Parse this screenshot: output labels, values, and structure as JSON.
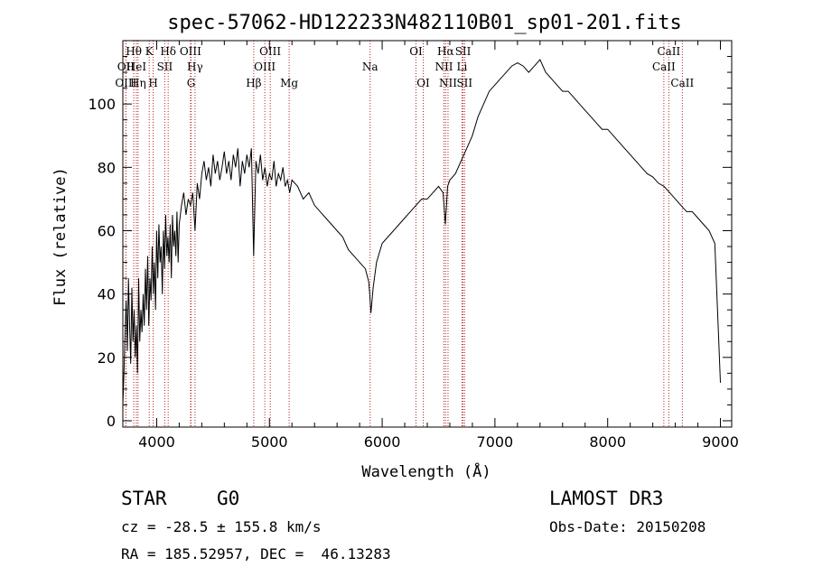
{
  "chart_data": {
    "type": "line",
    "title": "spec-57062-HD122233N482110B01_sp01-201.fits",
    "xlabel": "Wavelength (Å)",
    "ylabel": "Flux (relative)",
    "xlim": [
      3700,
      9100
    ],
    "ylim": [
      -2,
      120
    ],
    "xticks": [
      4000,
      5000,
      6000,
      7000,
      8000,
      9000
    ],
    "yticks": [
      0,
      20,
      40,
      60,
      80,
      100
    ],
    "series": [
      {
        "name": "flux",
        "x": [
          3700,
          3710,
          3720,
          3730,
          3740,
          3750,
          3760,
          3770,
          3780,
          3790,
          3800,
          3810,
          3820,
          3830,
          3840,
          3850,
          3860,
          3870,
          3880,
          3890,
          3900,
          3910,
          3920,
          3930,
          3940,
          3950,
          3960,
          3970,
          3980,
          3990,
          4000,
          4010,
          4020,
          4030,
          4040,
          4050,
          4060,
          4070,
          4080,
          4090,
          4100,
          4110,
          4120,
          4130,
          4140,
          4150,
          4160,
          4170,
          4180,
          4190,
          4200,
          4220,
          4240,
          4260,
          4280,
          4300,
          4320,
          4340,
          4360,
          4380,
          4400,
          4420,
          4440,
          4460,
          4480,
          4500,
          4520,
          4540,
          4560,
          4580,
          4600,
          4620,
          4640,
          4660,
          4680,
          4700,
          4720,
          4740,
          4760,
          4780,
          4800,
          4820,
          4840,
          4860,
          4880,
          4900,
          4920,
          4940,
          4960,
          4980,
          5000,
          5020,
          5040,
          5060,
          5080,
          5100,
          5120,
          5140,
          5160,
          5180,
          5200,
          5250,
          5300,
          5350,
          5400,
          5450,
          5500,
          5550,
          5600,
          5650,
          5700,
          5750,
          5800,
          5850,
          5880,
          5890,
          5900,
          5920,
          5950,
          6000,
          6050,
          6100,
          6150,
          6200,
          6250,
          6300,
          6350,
          6400,
          6450,
          6500,
          6540,
          6560,
          6580,
          6600,
          6650,
          6700,
          6750,
          6800,
          6850,
          6900,
          6950,
          7000,
          7050,
          7100,
          7150,
          7200,
          7250,
          7300,
          7350,
          7400,
          7450,
          7500,
          7550,
          7600,
          7650,
          7700,
          7750,
          7800,
          7850,
          7900,
          7950,
          8000,
          8050,
          8100,
          8150,
          8200,
          8250,
          8300,
          8350,
          8400,
          8450,
          8500,
          8550,
          8600,
          8650,
          8700,
          8750,
          8800,
          8850,
          8900,
          8950,
          8980,
          9000
        ],
        "values": [
          5,
          15,
          28,
          38,
          22,
          45,
          30,
          18,
          42,
          25,
          35,
          20,
          30,
          15,
          45,
          25,
          35,
          28,
          40,
          30,
          48,
          35,
          52,
          30,
          45,
          38,
          55,
          40,
          50,
          35,
          60,
          45,
          62,
          50,
          55,
          40,
          60,
          48,
          65,
          52,
          58,
          50,
          62,
          45,
          65,
          55,
          60,
          52,
          66,
          50,
          62,
          68,
          72,
          65,
          70,
          68,
          72,
          60,
          75,
          70,
          78,
          82,
          76,
          80,
          74,
          84,
          78,
          82,
          76,
          80,
          85,
          78,
          82,
          76,
          84,
          80,
          86,
          74,
          82,
          78,
          84,
          80,
          86,
          52,
          82,
          78,
          84,
          76,
          80,
          74,
          78,
          76,
          82,
          74,
          78,
          76,
          80,
          74,
          76,
          72,
          76,
          74,
          70,
          72,
          68,
          66,
          64,
          62,
          60,
          58,
          54,
          52,
          50,
          48,
          44,
          40,
          34,
          42,
          50,
          56,
          58,
          60,
          62,
          64,
          66,
          68,
          70,
          70,
          72,
          74,
          72,
          62,
          74,
          76,
          78,
          82,
          86,
          90,
          96,
          100,
          104,
          106,
          108,
          110,
          112,
          113,
          112,
          110,
          112,
          114,
          110,
          108,
          106,
          104,
          104,
          102,
          100,
          98,
          96,
          94,
          92,
          92,
          90,
          88,
          86,
          84,
          82,
          80,
          78,
          77,
          75,
          74,
          72,
          70,
          68,
          66,
          66,
          64,
          62,
          60,
          56,
          30,
          12
        ]
      }
    ],
    "lines": [
      {
        "label": "OII",
        "x": 3727,
        "row": 1
      },
      {
        "label": "OIII",
        "x": 3727,
        "row": 2
      },
      {
        "label": "Hθ",
        "x": 3797,
        "row": 0
      },
      {
        "label": "HeI",
        "x": 3820,
        "row": 1
      },
      {
        "label": "Hη",
        "x": 3835,
        "row": 2
      },
      {
        "label": "K",
        "x": 3934,
        "row": 0
      },
      {
        "label": "H",
        "x": 3969,
        "row": 2
      },
      {
        "label": "SII",
        "x": 4072,
        "row": 1
      },
      {
        "label": "Hδ",
        "x": 4102,
        "row": 0
      },
      {
        "label": "OIII",
        "x": 4300,
        "row": 0
      },
      {
        "label": "G",
        "x": 4305,
        "row": 2
      },
      {
        "label": "Hγ",
        "x": 4340,
        "row": 1
      },
      {
        "label": "Hβ",
        "x": 4861,
        "row": 2
      },
      {
        "label": "OIII",
        "x": 4959,
        "row": 1
      },
      {
        "label": "OIII",
        "x": 5007,
        "row": 0
      },
      {
        "label": "Mg",
        "x": 5175,
        "row": 2
      },
      {
        "label": "Na",
        "x": 5893,
        "row": 1
      },
      {
        "label": "OI",
        "x": 6300,
        "row": 0
      },
      {
        "label": "OI",
        "x": 6364,
        "row": 2
      },
      {
        "label": "NII",
        "x": 6548,
        "row": 1
      },
      {
        "label": "Hα",
        "x": 6563,
        "row": 0
      },
      {
        "label": "NII",
        "x": 6584,
        "row": 2
      },
      {
        "label": "SII",
        "x": 6717,
        "row": 0
      },
      {
        "label": "Li",
        "x": 6708,
        "row": 1
      },
      {
        "label": "SII",
        "x": 6731,
        "row": 2
      },
      {
        "label": "CaII",
        "x": 8498,
        "row": 1
      },
      {
        "label": "CaII",
        "x": 8542,
        "row": 0
      },
      {
        "label": "CaII",
        "x": 8662,
        "row": 2
      }
    ]
  },
  "info": {
    "object_type": "STAR",
    "subclass": "G0",
    "survey": "LAMOST DR3",
    "cz": "cz = -28.5 ± 155.8 km/s",
    "obs_date": "Obs-Date: 20150208",
    "coords": "RA = 185.52957, DEC =  46.13283"
  },
  "colors": {
    "line_marker": "#b22222",
    "spectrum": "#000000"
  }
}
